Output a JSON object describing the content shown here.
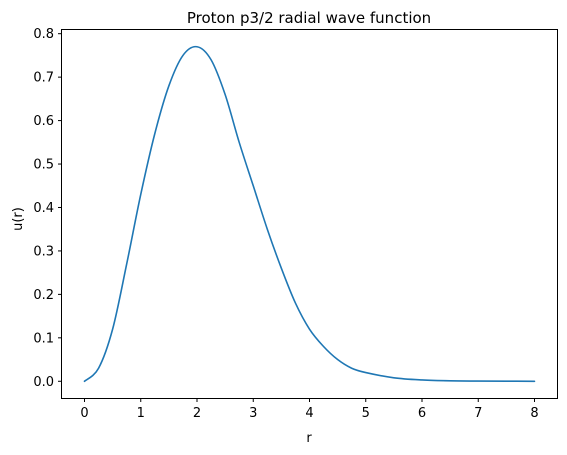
{
  "chart_data": {
    "type": "line",
    "title": "Proton p3/2 radial wave function",
    "xlabel": "r",
    "ylabel": "u(r)",
    "xlim": [
      -0.4,
      8.4
    ],
    "ylim": [
      -0.0385,
      0.8085
    ],
    "grid": false,
    "x_ticks": [
      "0",
      "1",
      "2",
      "3",
      "4",
      "5",
      "6",
      "7",
      "8"
    ],
    "y_ticks": [
      "0.0",
      "0.1",
      "0.2",
      "0.3",
      "0.4",
      "0.5",
      "0.6",
      "0.7",
      "0.8"
    ],
    "series": [
      {
        "color": "#1f77b4",
        "x": [
          0,
          0.25,
          0.5,
          0.75,
          1.0,
          1.25,
          1.5,
          1.75,
          2.0,
          2.25,
          2.5,
          2.75,
          3.0,
          3.25,
          3.5,
          3.75,
          4.0,
          4.25,
          4.5,
          4.75,
          5.0,
          5.5,
          6.0,
          6.5,
          7.0,
          7.5,
          8.0
        ],
        "y": [
          0.0,
          0.03,
          0.12,
          0.27,
          0.43,
          0.57,
          0.68,
          0.75,
          0.77,
          0.74,
          0.66,
          0.55,
          0.45,
          0.35,
          0.26,
          0.18,
          0.12,
          0.08,
          0.05,
          0.03,
          0.02,
          0.008,
          0.003,
          0.001,
          0.0005,
          0.0002,
          0.0
        ]
      }
    ]
  }
}
